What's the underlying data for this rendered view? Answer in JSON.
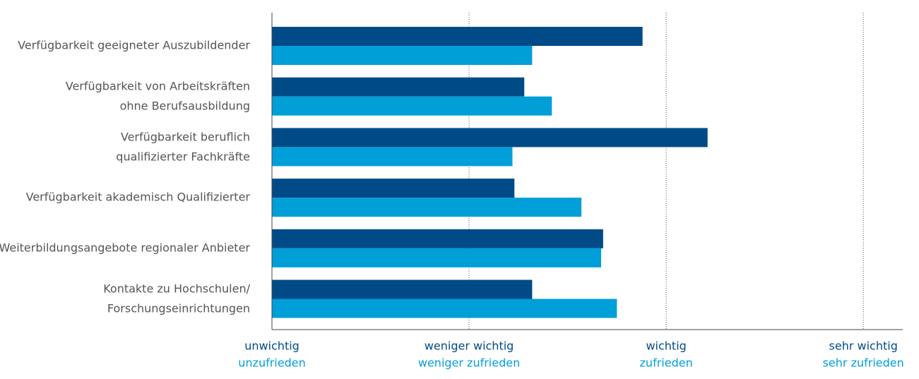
{
  "chart_data": {
    "type": "bar",
    "orientation": "horizontal",
    "categories": [
      "Verfügbarkeit geeigneter Auszubildender",
      "Verfügbarkeit von Arbeitskräften\nohne Berufsausbildung",
      "Verfügbarkeit beruflich\nqualifizierter Fachkräfte",
      "Verfügbarkeit akademisch Qualifizierter",
      "Weiterbildungsangebote regionaler Anbieter",
      "Kontakte zu Hochschulen/\nForschungseinrichtungen"
    ],
    "series": [
      {
        "color": "#004b87",
        "values": [
          2.88,
          2.28,
          3.21,
          2.23,
          2.68,
          2.32
        ]
      },
      {
        "color": "#009fd8",
        "values": [
          2.32,
          2.42,
          2.22,
          2.57,
          2.67,
          2.75
        ]
      }
    ],
    "xlim": [
      1,
      4.2
    ],
    "xticks": [
      {
        "value": 1,
        "label": "unwichtig",
        "sublabel": "unzufrieden"
      },
      {
        "value": 2,
        "label": "weniger wichtig",
        "sublabel": "weniger zufrieden"
      },
      {
        "value": 3,
        "label": "wichtig",
        "sublabel": "zufrieden"
      },
      {
        "value": 4,
        "label": "sehr wichtig",
        "sublabel": "sehr zufrieden"
      }
    ],
    "grid": true
  }
}
